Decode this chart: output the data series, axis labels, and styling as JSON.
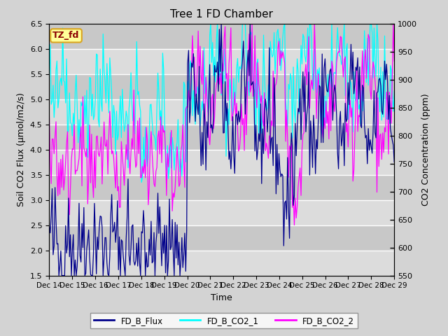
{
  "title": "Tree 1 FD Chamber",
  "xlabel": "Time",
  "ylabel_left": "Soil CO2 Flux (μmol/m2/s)",
  "ylabel_right": "CO2 Concentration (ppm)",
  "ylim_left": [
    1.5,
    6.5
  ],
  "ylim_right": [
    550,
    1000
  ],
  "xlim": [
    0,
    360
  ],
  "x_tick_labels": [
    "Dec 14",
    "Dec 15",
    "Dec 16",
    "Dec 17",
    "Dec 18",
    "Dec 19",
    "Dec 20",
    "Dec 21",
    "Dec 22",
    "Dec 23",
    "Dec 24",
    "Dec 25",
    "Dec 26",
    "Dec 27",
    "Dec 28",
    "Dec 29"
  ],
  "x_tick_positions": [
    0,
    24,
    48,
    72,
    96,
    120,
    144,
    168,
    192,
    216,
    240,
    264,
    288,
    312,
    336,
    360
  ],
  "legend_labels": [
    "FD_B_Flux",
    "FD_B_CO2_1",
    "FD_B_CO2_2"
  ],
  "colors": {
    "flux": "#00008B",
    "co2_1": "#00FFFF",
    "co2_2": "#FF00FF"
  },
  "annotation_text": "TZ_fd",
  "annotation_bg": "#FFFF99",
  "annotation_border": "#DAA520",
  "fig_bg": "#D3D3D3",
  "plot_bg": "#D3D3D3",
  "band_light": "#DCDCDC",
  "band_dark": "#C8C8C8",
  "grid_color": "#FFFFFF"
}
